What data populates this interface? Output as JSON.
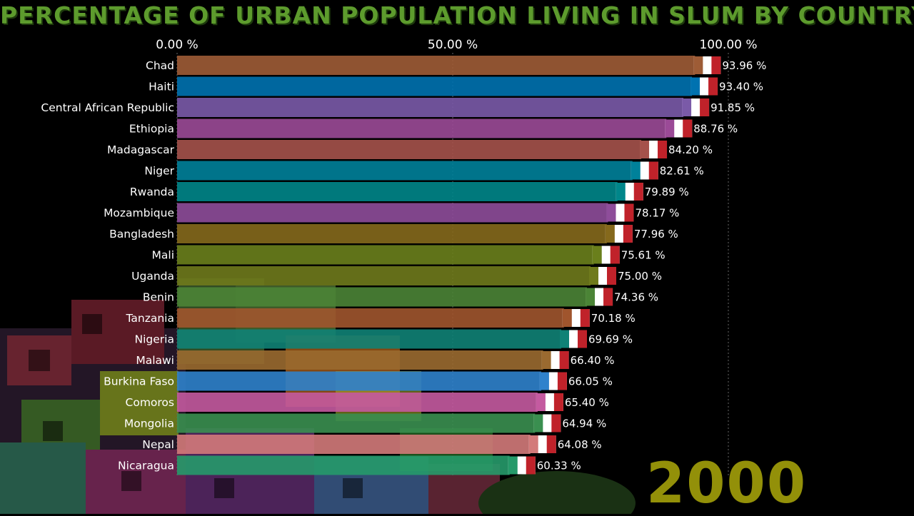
{
  "title": "PERCENTAGE OF URBAN POPULATION LIVING IN SLUM BY COUNTRY",
  "year": "2000",
  "colors": {
    "title": "#5d9b2d",
    "year": "#b8b40c",
    "background": "#000000"
  },
  "chart_data": {
    "type": "bar",
    "orientation": "horizontal",
    "title": "PERCENTAGE OF URBAN POPULATION LIVING IN SLUM BY COUNTRY",
    "xlim": [
      0,
      100
    ],
    "x_ticks": [
      {
        "value": 0,
        "label": "0.00 %"
      },
      {
        "value": 50,
        "label": "50.00 %"
      },
      {
        "value": 100,
        "label": "100.00 %"
      }
    ],
    "grid": "vertical dotted",
    "categories": [
      "Chad",
      "Haiti",
      "Central African Republic",
      "Ethiopia",
      "Madagascar",
      "Niger",
      "Rwanda",
      "Mozambique",
      "Bangladesh",
      "Mali",
      "Uganda",
      "Benin",
      "Tanzania",
      "Nigeria",
      "Malawi",
      "Burkina Faso",
      "Comoros",
      "Mongolia",
      "Nepal",
      "Nicaragua"
    ],
    "values": [
      93.96,
      93.4,
      91.85,
      88.76,
      84.2,
      82.61,
      79.89,
      78.17,
      77.96,
      75.61,
      75.0,
      74.36,
      70.18,
      69.69,
      66.4,
      66.05,
      65.4,
      64.94,
      64.08,
      60.33
    ],
    "value_labels": [
      "93.96 %",
      "93.40 %",
      "91.85 %",
      "88.76 %",
      "84.20 %",
      "82.61 %",
      "79.89 %",
      "78.17 %",
      "77.96 %",
      "75.61 %",
      "75.00 %",
      "74.36 %",
      "70.18 %",
      "69.69 %",
      "66.40 %",
      "66.05 %",
      "65.40 %",
      "64.94 %",
      "64.08 %",
      "60.33 %"
    ],
    "bar_colors": [
      "#9e5c36",
      "#0072b0",
      "#7a5aa8",
      "#9b4a97",
      "#a5524b",
      "#00819a",
      "#00868a",
      "#8e4d9a",
      "#85691c",
      "#6a7f1c",
      "#6f7a1c",
      "#4b8436",
      "#a0552d",
      "#0f8276",
      "#9a6a30",
      "#2f82cc",
      "#c45aa0",
      "#3a8f50",
      "#d37a7a",
      "#269a6a"
    ]
  }
}
